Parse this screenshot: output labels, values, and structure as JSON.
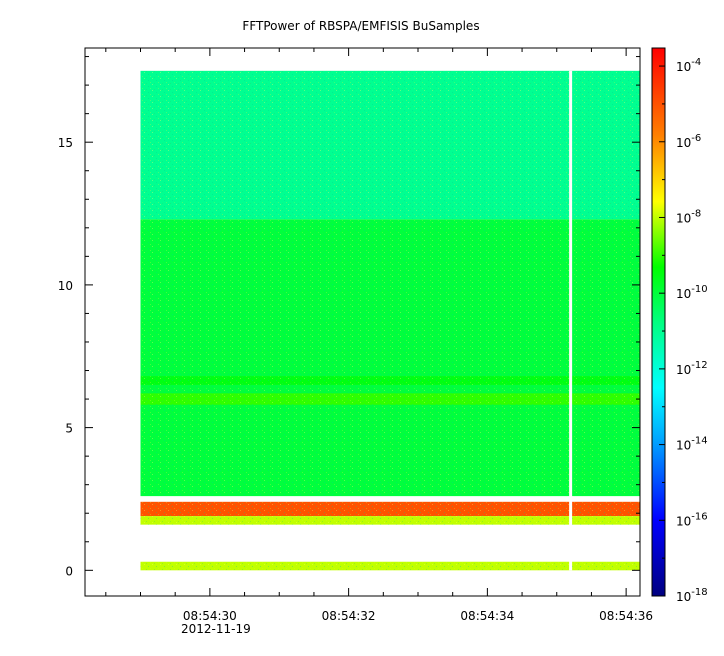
{
  "chart_data": {
    "type": "heatmap",
    "title": "FFTPower of RBSPA/EMFISIS  BuSamples",
    "xlabel": "",
    "ylabel": "",
    "x_date_label": "2012-11-19",
    "x_ticks": [
      "08:54:30",
      "08:54:32",
      "08:54:34",
      "08:54:36"
    ],
    "x_range": [
      "08:54:28.2",
      "08:54:36.2"
    ],
    "data_x_range": [
      "08:54:29.0",
      "08:54:36.2"
    ],
    "gap_at": "08:54:35.2",
    "y_ticks": [
      0,
      5,
      10,
      15
    ],
    "ylim": [
      -0.9,
      18.3
    ],
    "data_y_range": [
      0,
      17.5
    ],
    "colorbar": {
      "scale": "log",
      "range": [
        "1e-18",
        "3e-4"
      ],
      "tick_bases": [
        "10",
        "10",
        "10",
        "10",
        "10",
        "10",
        "10",
        "10"
      ],
      "tick_exponents": [
        "-4",
        "-6",
        "-8",
        "-10",
        "-12",
        "-14",
        "-16",
        "-18"
      ]
    },
    "bands": [
      {
        "y_from": 12.3,
        "y_to": 17.5,
        "level": "1e-11"
      },
      {
        "y_from": 2.6,
        "y_to": 12.3,
        "level": "1e-10"
      },
      {
        "y_from": 5.8,
        "y_to": 6.2,
        "level": "1e-9"
      },
      {
        "y_from": 6.5,
        "y_to": 6.8,
        "level": "3e-10"
      },
      {
        "y_from": 1.9,
        "y_to": 2.4,
        "level": "1e-5"
      },
      {
        "y_from": 1.6,
        "y_to": 1.9,
        "level": "1e-8"
      },
      {
        "y_from": 0,
        "y_to": 0.3,
        "level": "1e-8"
      }
    ],
    "grid": false,
    "colors": {
      "axis": "#000000",
      "gap": "#ffffff"
    }
  }
}
